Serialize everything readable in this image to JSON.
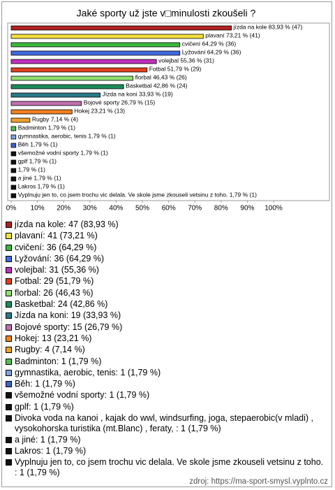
{
  "chart_data": {
    "type": "bar",
    "orientation": "horizontal",
    "title": "Jaké sporty už jste v□minulosti zkoušeli ?",
    "values": [
      83.93,
      73.21,
      64.29,
      64.29,
      55.36,
      51.79,
      46.43,
      42.86,
      33.93,
      26.79,
      23.21,
      7.14,
      1.79,
      1.79,
      1.79,
      1.79,
      1.79,
      1.79,
      1.79,
      1.79,
      1.79
    ],
    "value_labels": [
      "jízda na kole 83,93 % (47)",
      "plavaní 73,21 % (41)",
      "cvičení 64,29 % (36)",
      "Lyžování 64,29 % (36)",
      "volejbal 55,36 % (31)",
      "Fotbal 51,79 % (29)",
      "florbal 46,43 % (26)",
      "Basketbal 42,86 % (24)",
      "Jízda na koni 33,93 % (19)",
      "Bojové sporty 26,79 % (15)",
      "Hokej 23,21 % (13)",
      "Rugby 7,14 % (4)",
      "Badminton 1,79 % (1)",
      "gymnastika, aerobic, tenis 1,79 % (1)",
      "Běh 1,79 % (1)",
      "všemožné vodní sporty 1,79 % (1)",
      "gplf 1,79 % (1)",
      "1,79 % (1)",
      "a jiné 1,79 % (1)",
      "Lakros 1,79 % (1)",
      "Vyplnuju jen to, co jsem trochu vic delala. Ve skole jsme zkouseli vetsinu z toho.  1,79 % (1)"
    ],
    "colors": [
      "#b22222",
      "#f0e040",
      "#3cb83c",
      "#4169e1",
      "#c030c0",
      "#e04020",
      "#90e070",
      "#1e8a5a",
      "#2a7a8a",
      "#c070b0",
      "#f08020",
      "#f0a030",
      "#50c050",
      "#80a0e0",
      "#4060d0",
      "#111111",
      "#111111",
      "#111111",
      "#111111",
      "#111111",
      "#111111"
    ],
    "xlim": [
      0,
      100
    ],
    "xticks": [
      {
        "value": 0,
        "label": "0%"
      },
      {
        "value": 10,
        "label": "10%"
      },
      {
        "value": 20,
        "label": "20%"
      },
      {
        "value": 30,
        "label": "30%"
      },
      {
        "value": 40,
        "label": "40%"
      },
      {
        "value": 50,
        "label": "50%"
      },
      {
        "value": 60,
        "label": "60%"
      },
      {
        "value": 70,
        "label": "70%"
      },
      {
        "value": 80,
        "label": "80%"
      },
      {
        "value": 90,
        "label": "90%"
      },
      {
        "value": 100,
        "label": "100%"
      }
    ],
    "legend": {
      "items": [
        "jízda na kole: 47 (83,93 %)",
        "plavaní: 41 (73,21 %)",
        "cvičení: 36 (64,29 %)",
        "Lyžování: 36 (64,29 %)",
        "volejbal: 31 (55,36 %)",
        "Fotbal: 29 (51,79 %)",
        "florbal: 26 (46,43 %)",
        "Basketbal: 24 (42,86 %)",
        "Jízda na koni: 19 (33,93 %)",
        "Bojové sporty: 15 (26,79 %)",
        "Hokej: 13 (23,21 %)",
        "Rugby: 4 (7,14 %)",
        "Badminton: 1 (1,79 %)",
        "gymnastika, aerobic, tenis: 1 (1,79 %)",
        "Běh: 1 (1,79 %)",
        "všemožné vodní sporty: 1 (1,79 %)",
        "gplf: 1 (1,79 %)",
        "Divoka voda na kanoi , kajak do wwl, windsurfing, joga, stepaerobic(v mladi) , vysokohorska turistika (mt.Blanc) , feraty, : 1 (1,79 %)",
        "a jiné: 1 (1,79 %)",
        "Lakros: 1 (1,79 %)",
        "Vyplnuju jen to, co jsem trochu vic delala. Ve skole jsme zkouseli vetsinu z toho. : 1 (1,79 %)"
      ]
    },
    "source": "zdroj: https://ma-sport-smysl.vyplnto.cz"
  }
}
